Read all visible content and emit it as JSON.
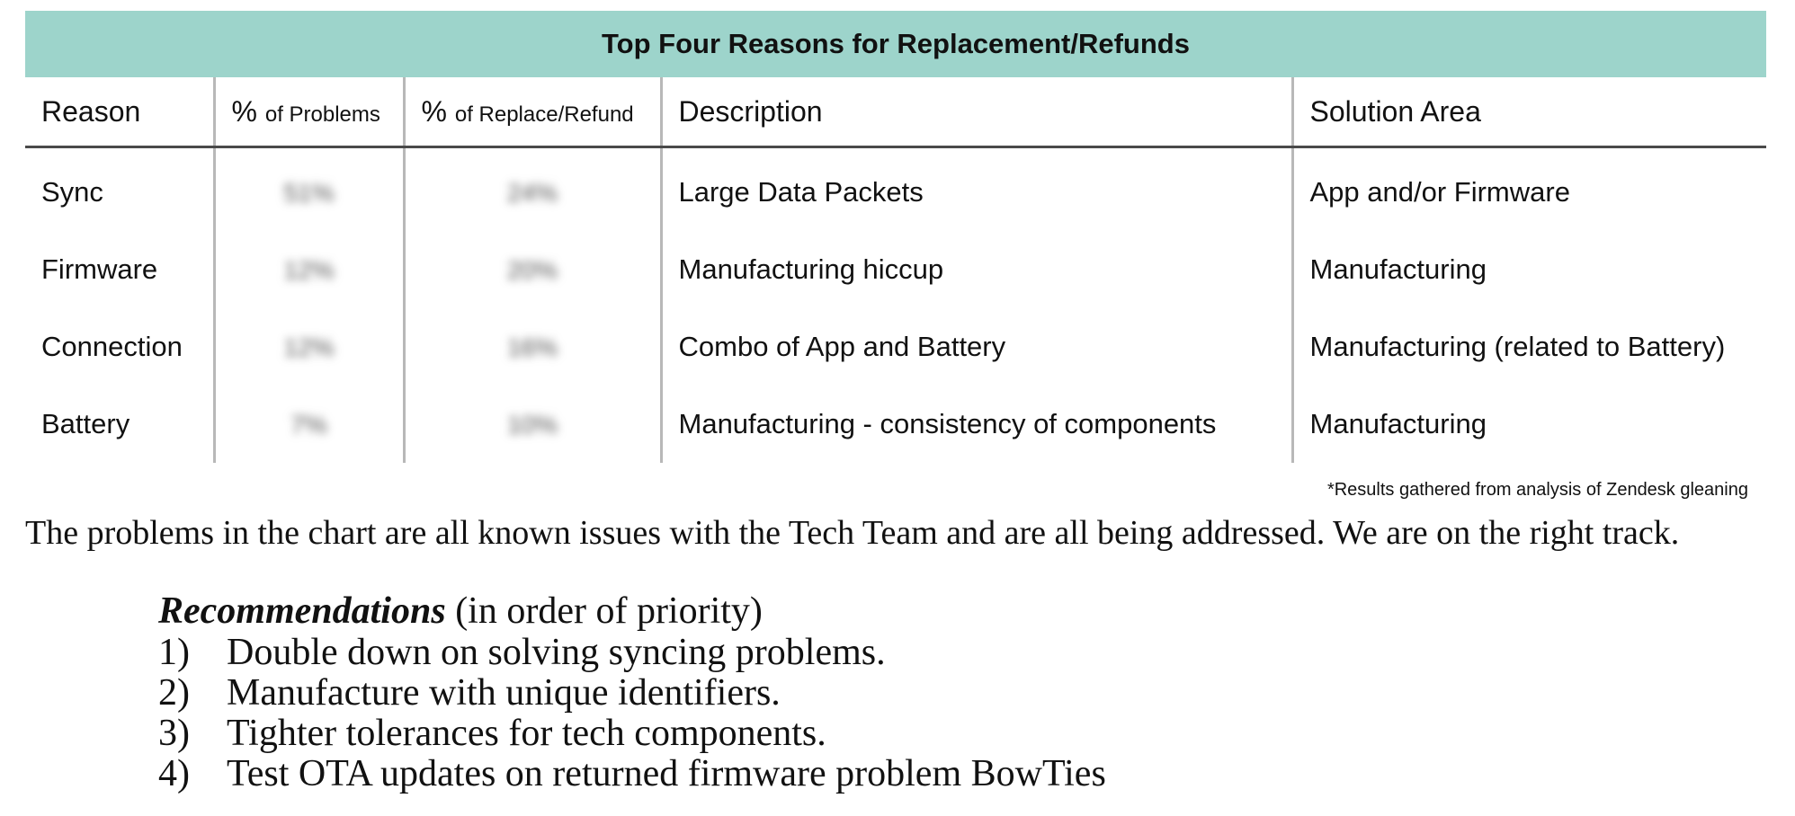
{
  "table": {
    "title": "Top Four Reasons for Replacement/Refunds",
    "headers": {
      "reason": "Reason",
      "pct_problems_symbol": "%",
      "pct_problems_text": "of Problems",
      "pct_replace_symbol": "%",
      "pct_replace_text": "of Replace/Refund",
      "description": "Description",
      "solution": "Solution Area"
    },
    "rows": [
      {
        "reason": "Sync",
        "pct_problems": "51%",
        "pct_replace": "24%",
        "description": "Large Data Packets",
        "solution": "App and/or Firmware"
      },
      {
        "reason": "Firmware",
        "pct_problems": "12%",
        "pct_replace": "20%",
        "description": "Manufacturing hiccup",
        "solution": "Manufacturing"
      },
      {
        "reason": "Connection",
        "pct_problems": "12%",
        "pct_replace": "16%",
        "description": "Combo of App and Battery",
        "solution": "Manufacturing (related to Battery)"
      },
      {
        "reason": "Battery",
        "pct_problems": "7%",
        "pct_replace": "10%",
        "description": "Manufacturing - consistency of components",
        "solution": "Manufacturing"
      }
    ],
    "footnote": "*Results gathered from analysis of Zendesk gleaning"
  },
  "summary": "The problems in the chart are all known issues with the Tech Team and are all being addressed. We are on the right track.",
  "recommendations": {
    "heading_emphasis": "Recommendations",
    "heading_rest": " (in order of priority)",
    "items": [
      {
        "num": "1)",
        "text": "Double down on solving syncing problems."
      },
      {
        "num": "2)",
        "text": "Manufacture with unique identifiers."
      },
      {
        "num": "3)",
        "text": "Tighter tolerances for tech components."
      },
      {
        "num": "4)",
        "text": "Test OTA updates on returned firmware problem BowTies"
      }
    ]
  },
  "colors": {
    "title_band": "#9dd4cb",
    "header_rule": "#4a4a4a",
    "column_rule": "#b8b8b8"
  }
}
